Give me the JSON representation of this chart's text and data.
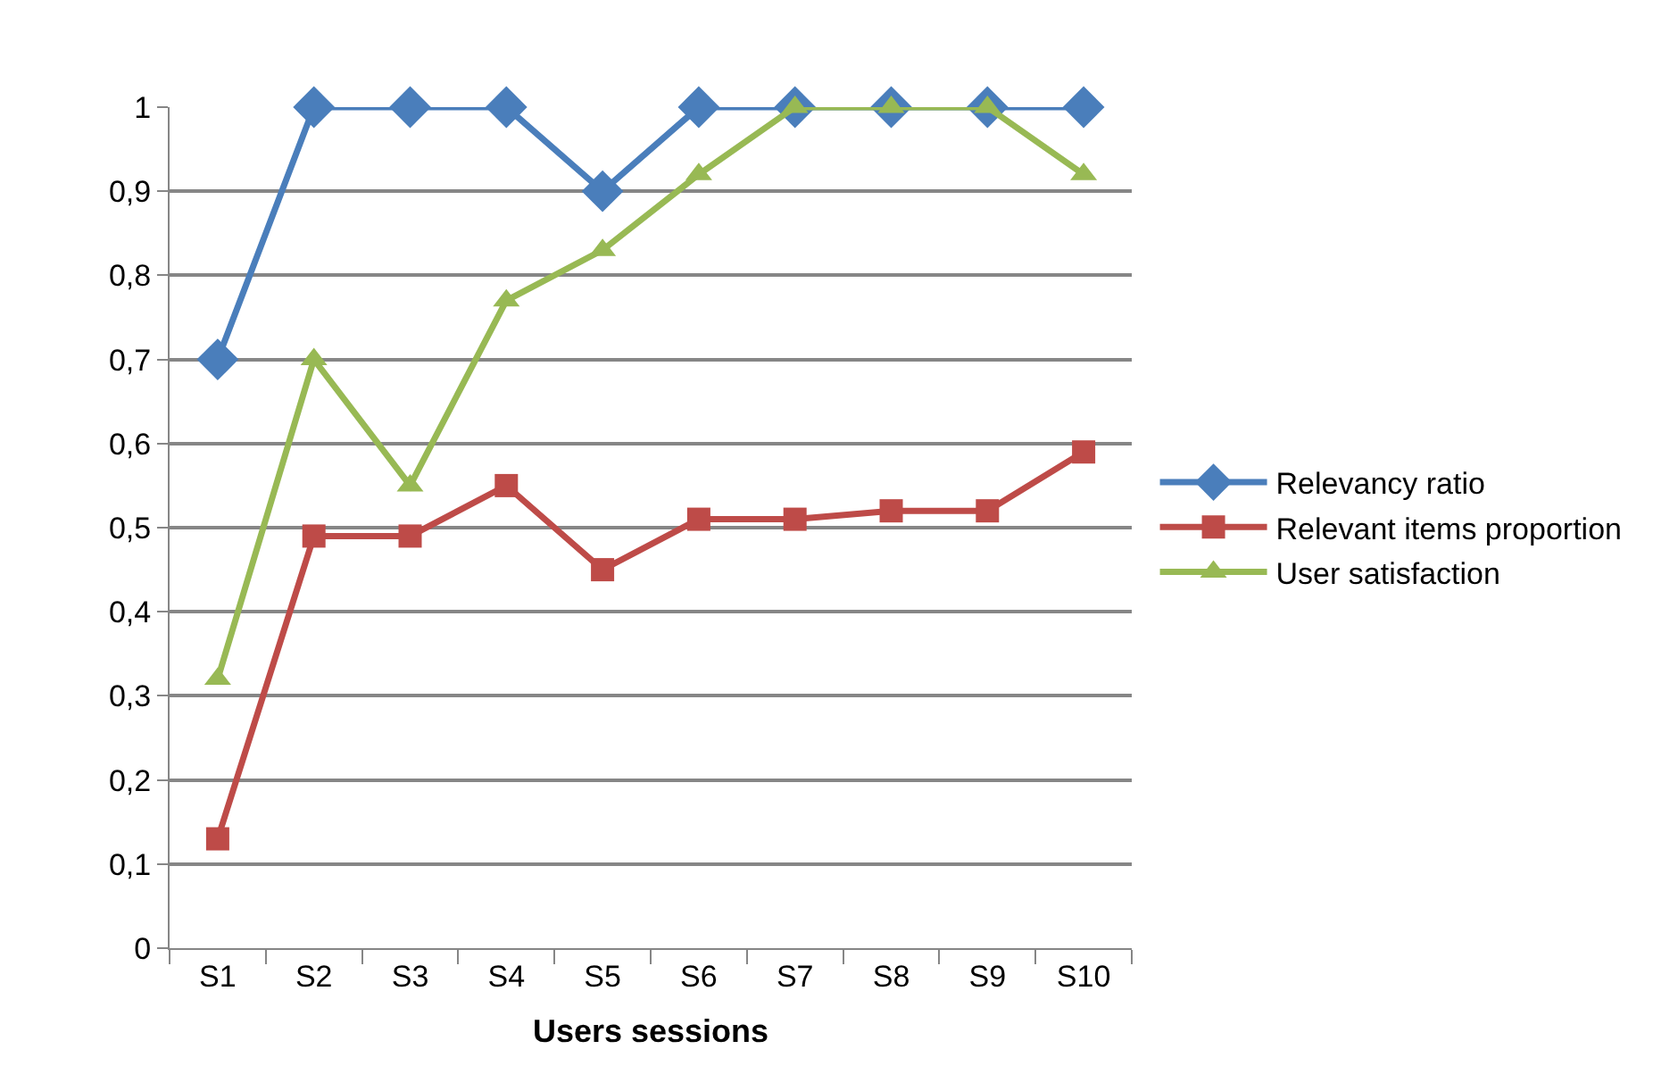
{
  "chart_data": {
    "type": "line",
    "xlabel": "Users sessions",
    "categories": [
      "S1",
      "S2",
      "S3",
      "S4",
      "S5",
      "S6",
      "S7",
      "S8",
      "S9",
      "S10"
    ],
    "series": [
      {
        "name": "Relevancy ratio",
        "color": "#4a7ebb",
        "marker": "diamond",
        "values": [
          0.7,
          1,
          1,
          1,
          0.9,
          1,
          1,
          1,
          1,
          1
        ]
      },
      {
        "name": "Relevant items proportion",
        "color": "#be4b48",
        "marker": "square",
        "values": [
          0.13,
          0.49,
          0.49,
          0.55,
          0.45,
          0.51,
          0.51,
          0.52,
          0.52,
          0.59
        ]
      },
      {
        "name": "User satisfaction",
        "color": "#98b954",
        "marker": "triangle",
        "values": [
          0.32,
          0.7,
          0.55,
          0.77,
          0.83,
          0.92,
          1,
          1,
          1,
          0.92
        ]
      }
    ],
    "ylim": [
      0,
      1
    ],
    "yticks": [
      0,
      {
        "value": 0.1,
        "label": "0,1"
      },
      {
        "value": 0.2,
        "label": "0,2"
      },
      {
        "value": 0.3,
        "label": "0,3"
      },
      {
        "value": 0.4,
        "label": "0,4"
      },
      {
        "value": 0.5,
        "label": "0,5"
      },
      {
        "value": 0.6,
        "label": "0,6"
      },
      {
        "value": 0.7,
        "label": "0,7"
      },
      {
        "value": 0.8,
        "label": "0,8"
      },
      {
        "value": 0.9,
        "label": "0,9"
      },
      1
    ],
    "grid": "y",
    "legend": "right",
    "line_style": "solid"
  }
}
